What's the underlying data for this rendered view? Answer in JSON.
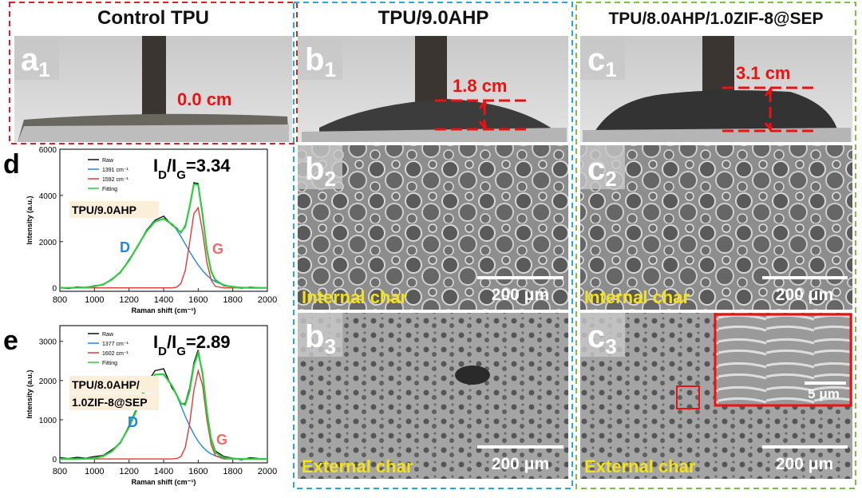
{
  "columns": [
    {
      "title": "Control TPU"
    },
    {
      "title": "TPU/9.0AHP"
    },
    {
      "title": "TPU/8.0AHP/1.0ZIF-8@SEP"
    }
  ],
  "panels": [
    {
      "letter": "a",
      "sub": "1",
      "measure": "0.0 cm"
    },
    {
      "letter": "b",
      "sub": "1",
      "measure": "1.8 cm"
    },
    {
      "letter": "b",
      "sub": "2",
      "caption": "Internal char",
      "scale": "200 μm"
    },
    {
      "letter": "b",
      "sub": "3",
      "caption": "External char",
      "scale": "200 μm"
    },
    {
      "letter": "c",
      "sub": "1",
      "measure": "3.1 cm"
    },
    {
      "letter": "c",
      "sub": "2",
      "caption": "Internal char",
      "scale": "200 μm"
    },
    {
      "letter": "c",
      "sub": "3",
      "caption": "External char",
      "scale": "200 μm",
      "inset_scale": "5 μm"
    }
  ],
  "chart_data": [
    {
      "type": "line",
      "letter": "d",
      "ratio": [
        "I",
        "D",
        "/I",
        "G",
        "=3.34"
      ],
      "sample": [
        "TPU/9.0AHP"
      ],
      "peak_labels": [
        "D",
        "G"
      ],
      "xlabel": "Raman shift (cm⁻¹)",
      "ylabel": "Intensity (a.u.)",
      "x": [
        800,
        850,
        900,
        950,
        1000,
        1050,
        1100,
        1150,
        1200,
        1250,
        1300,
        1350,
        1400,
        1450,
        1475,
        1500,
        1525,
        1550,
        1575,
        1600,
        1625,
        1650,
        1675,
        1700,
        1750,
        1800,
        1850,
        1900,
        1950,
        2000
      ],
      "series": [
        {
          "name": "Raw",
          "color": "#111111",
          "values": [
            20,
            -30,
            40,
            10,
            90,
            130,
            380,
            650,
            1220,
            1780,
            2480,
            2930,
            3100,
            2700,
            2590,
            2380,
            2700,
            3450,
            4550,
            4510,
            3100,
            1680,
            680,
            350,
            80,
            60,
            -20,
            30,
            10,
            -10
          ]
        },
        {
          "name": "1391 cm⁻¹",
          "color": "#1e88e5",
          "values": [
            0,
            0,
            10,
            20,
            60,
            150,
            350,
            680,
            1180,
            1810,
            2430,
            2870,
            2990,
            2750,
            2510,
            2220,
            1900,
            1570,
            1270,
            990,
            740,
            540,
            380,
            260,
            110,
            40,
            10,
            0,
            0,
            0
          ]
        },
        {
          "name": "1592 cm⁻¹",
          "color": "#e53935",
          "values": [
            0,
            0,
            0,
            0,
            0,
            0,
            0,
            0,
            0,
            0,
            0,
            0,
            0,
            0,
            30,
            190,
            750,
            1930,
            3210,
            3470,
            2430,
            1100,
            330,
            60,
            0,
            0,
            0,
            0,
            0,
            0
          ]
        },
        {
          "name": "Fitting",
          "color": "#2ecc40",
          "values": [
            0,
            0,
            10,
            20,
            60,
            150,
            350,
            680,
            1180,
            1810,
            2430,
            2870,
            2990,
            2750,
            2540,
            2410,
            2650,
            3500,
            4480,
            4460,
            3170,
            1640,
            710,
            320,
            110,
            40,
            10,
            0,
            0,
            0
          ]
        }
      ],
      "xlim": [
        800,
        2000
      ],
      "ylim": [
        -150,
        6000
      ],
      "xticks": [
        800,
        1000,
        1200,
        1400,
        1600,
        1800,
        2000
      ],
      "yticks": [
        0,
        2000,
        4000,
        6000
      ]
    },
    {
      "type": "line",
      "letter": "e",
      "ratio": [
        "I",
        "D",
        "/I",
        "G",
        "=2.89"
      ],
      "sample": [
        "TPU/8.0AHP/",
        "1.0ZIF-8@SEP"
      ],
      "peak_labels": [
        "D",
        "G"
      ],
      "xlabel": "Raman shift (cm⁻¹)",
      "ylabel": "Intensity (a.u.)",
      "x": [
        800,
        850,
        900,
        950,
        1000,
        1050,
        1100,
        1150,
        1200,
        1250,
        1300,
        1350,
        1400,
        1450,
        1475,
        1500,
        1525,
        1550,
        1575,
        1600,
        1625,
        1650,
        1675,
        1700,
        1750,
        1800,
        1850,
        1900,
        1950,
        2000
      ],
      "series": [
        {
          "name": "Raw",
          "color": "#111111",
          "values": [
            30,
            10,
            40,
            20,
            60,
            90,
            230,
            400,
            850,
            1350,
            1900,
            2250,
            2300,
            1800,
            1650,
            1400,
            1420,
            1800,
            2450,
            2780,
            2150,
            1200,
            520,
            200,
            60,
            20,
            -20,
            30,
            10,
            0
          ]
        },
        {
          "name": "1377 cm⁻¹",
          "color": "#1e88e5",
          "values": [
            0,
            0,
            0,
            10,
            20,
            70,
            190,
            420,
            810,
            1310,
            1820,
            2150,
            2160,
            1860,
            1620,
            1360,
            1090,
            850,
            630,
            450,
            310,
            200,
            130,
            80,
            30,
            10,
            0,
            0,
            0,
            0
          ]
        },
        {
          "name": "1602 cm⁻¹",
          "color": "#e53935",
          "values": [
            0,
            0,
            0,
            0,
            0,
            0,
            0,
            0,
            0,
            0,
            0,
            0,
            0,
            0,
            10,
            60,
            290,
            880,
            1750,
            2250,
            1880,
            1010,
            360,
            80,
            0,
            0,
            0,
            0,
            0,
            0
          ]
        },
        {
          "name": "Fitting",
          "color": "#2ecc40",
          "values": [
            0,
            0,
            0,
            10,
            20,
            70,
            190,
            420,
            810,
            1310,
            1820,
            2150,
            2160,
            1860,
            1630,
            1420,
            1380,
            1730,
            2380,
            2700,
            2190,
            1210,
            490,
            160,
            30,
            10,
            0,
            0,
            0,
            0
          ]
        }
      ],
      "xlim": [
        800,
        2000
      ],
      "ylim": [
        -100,
        3400
      ],
      "xticks": [
        800,
        1000,
        1200,
        1400,
        1600,
        1800,
        2000
      ],
      "yticks": [
        0,
        1000,
        2000,
        3000
      ]
    }
  ]
}
